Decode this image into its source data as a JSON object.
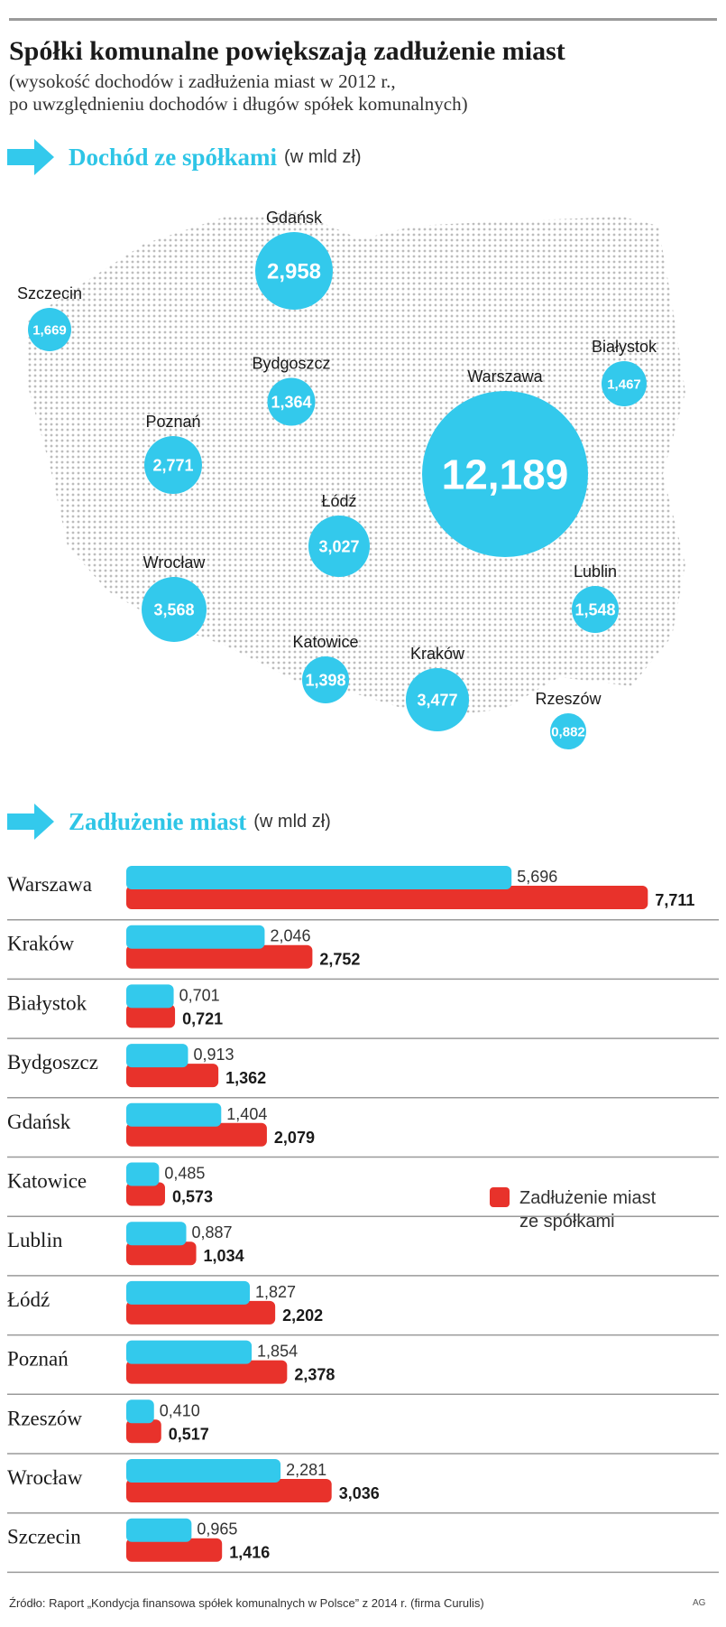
{
  "title": "Spółki komunalne powiększają zadłużenie miast",
  "subtitle_lines": [
    "(wysokość dochodów i zadłużenia miast w 2012 r.,",
    "po uwzględnieniu dochodów i długów spółek komunalnych)"
  ],
  "colors": {
    "cyan": "#33c9ec",
    "red": "#e8322b",
    "dots": "#bdbdbd",
    "text": "#1a1a1a"
  },
  "chart_data": [
    {
      "type": "bubble-map",
      "title": "Dochód ze spółkami",
      "unit": "(w mld zł)",
      "points": [
        {
          "city": "Gdańsk",
          "value": "2,958",
          "v": 2.958
        },
        {
          "city": "Szczecin",
          "value": "1,669",
          "v": 1.669
        },
        {
          "city": "Bydgoszcz",
          "value": "1,364",
          "v": 1.364
        },
        {
          "city": "Białystok",
          "value": "1,467",
          "v": 1.467
        },
        {
          "city": "Warszawa",
          "value": "12,189",
          "v": 12.189
        },
        {
          "city": "Poznań",
          "value": "2,771",
          "v": 2.771
        },
        {
          "city": "Łódź",
          "value": "3,027",
          "v": 3.027
        },
        {
          "city": "Wrocław",
          "value": "3,568",
          "v": 3.568
        },
        {
          "city": "Lublin",
          "value": "1,548",
          "v": 1.548
        },
        {
          "city": "Katowice",
          "value": "1,398",
          "v": 1.398
        },
        {
          "city": "Kraków",
          "value": "3,477",
          "v": 3.477
        },
        {
          "city": "Rzeszów",
          "value": "0,882",
          "v": 0.882
        }
      ]
    },
    {
      "type": "bar",
      "title": "Zadłużenie miast",
      "unit": "(w mld zł)",
      "categories": [
        "Warszawa",
        "Kraków",
        "Białystok",
        "Bydgoszcz",
        "Gdańsk",
        "Katowice",
        "Lublin",
        "Łódź",
        "Poznań",
        "Rzeszów",
        "Wrocław",
        "Szczecin"
      ],
      "series": [
        {
          "values": [
            5.696,
            2.046,
            0.701,
            0.913,
            1.404,
            0.485,
            0.887,
            1.827,
            1.854,
            0.41,
            2.281,
            0.965
          ],
          "labels": [
            "5,696",
            "2,046",
            "0,701",
            "0,913",
            "1,404",
            "0,485",
            "0,887",
            "1,827",
            "1,854",
            "0,410",
            "2,281",
            "0,965"
          ]
        },
        {
          "name": "Zadłużenie miast ze spółkami",
          "values": [
            7.711,
            2.752,
            0.721,
            1.362,
            2.079,
            0.573,
            1.034,
            2.202,
            2.378,
            0.517,
            3.036,
            1.416
          ],
          "labels": [
            "7,711",
            "2,752",
            "0,721",
            "1,362",
            "2,079",
            "0,573",
            "1,034",
            "2,202",
            "2,378",
            "0,517",
            "3,036",
            "1,416"
          ]
        }
      ],
      "legend_lines": [
        "Zadłużenie miast",
        "ze spółkami"
      ]
    }
  ],
  "source": "Źródło: Raport „Kondycja finansowa spółek komunalnych w Polsce” z 2014 r. (firma Curulis)",
  "credit": "AG"
}
